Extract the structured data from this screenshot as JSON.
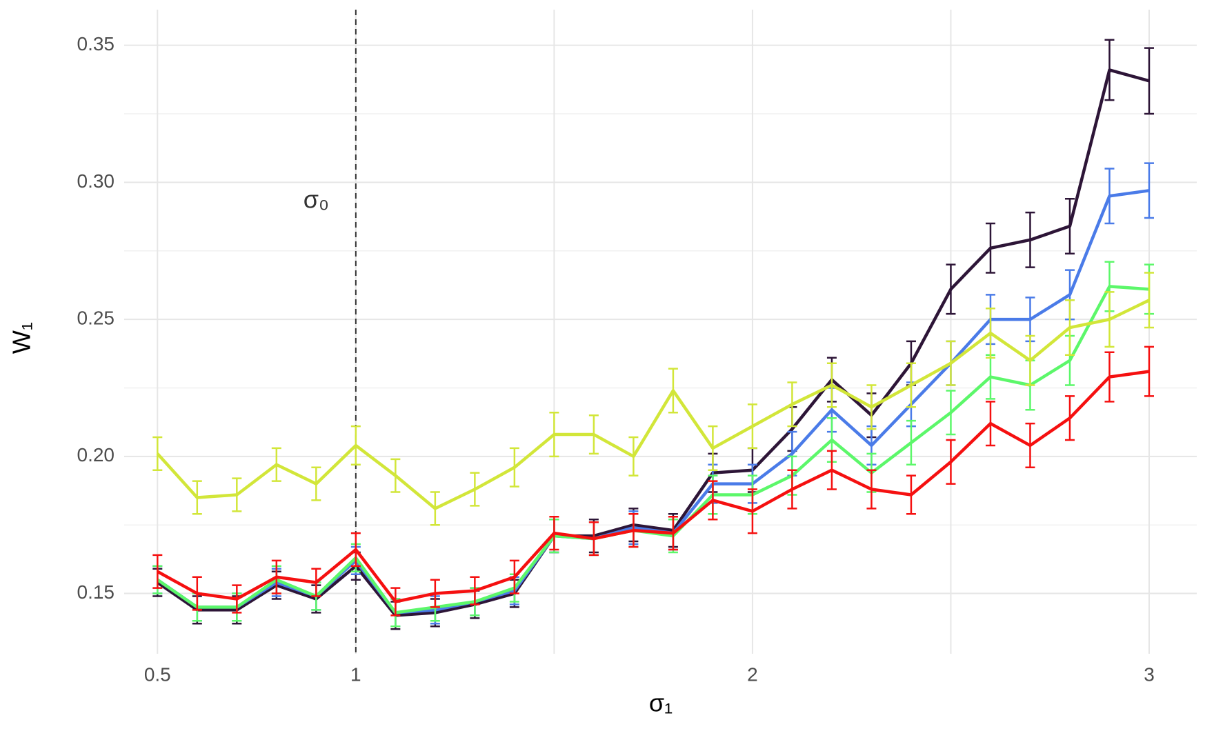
{
  "chart_data": {
    "type": "line",
    "x_label": "σ₁",
    "y_label": "W₁",
    "x": [
      0.5,
      0.6,
      0.7,
      0.8,
      0.9,
      1.0,
      1.1,
      1.2,
      1.3,
      1.4,
      1.5,
      1.6,
      1.7,
      1.8,
      1.9,
      2.0,
      2.1,
      2.2,
      2.3,
      2.4,
      2.5,
      2.6,
      2.7,
      2.8,
      2.9,
      3.0
    ],
    "xlim": [
      0.416,
      3.12
    ],
    "xticks": [
      0.5,
      1,
      2,
      3
    ],
    "xminor": [
      1.5,
      2.5
    ],
    "ylim": [
      0.128,
      0.363
    ],
    "yticks": [
      0.15,
      {
        "value": 0.2,
        "label": "0.20"
      },
      0.25,
      {
        "value": 0.3,
        "label": "0.30"
      },
      0.35
    ],
    "yminor": [
      0.175,
      0.225,
      0.275,
      0.325
    ],
    "grid": true,
    "vline": 1,
    "annotation": {
      "text": "σ₀",
      "x": 0.9,
      "y": 0.293
    },
    "series": [
      {
        "color": "#2d1537",
        "values": [
          0.154,
          0.144,
          0.144,
          0.153,
          0.148,
          0.16,
          0.142,
          0.143,
          0.146,
          0.15,
          0.171,
          0.171,
          0.175,
          0.173,
          0.194,
          0.195,
          0.21,
          0.228,
          0.215,
          0.234,
          0.261,
          0.276,
          0.279,
          0.284,
          0.341,
          0.337
        ],
        "errors": [
          0.005,
          0.005,
          0.005,
          0.005,
          0.005,
          0.005,
          0.005,
          0.005,
          0.005,
          0.005,
          0.006,
          0.006,
          0.006,
          0.006,
          0.007,
          0.008,
          0.008,
          0.008,
          0.008,
          0.008,
          0.009,
          0.009,
          0.01,
          0.01,
          0.011,
          0.012
        ]
      },
      {
        "color": "#4a7be8",
        "values": [
          0.155,
          0.145,
          0.145,
          0.154,
          0.149,
          0.162,
          0.143,
          0.144,
          0.147,
          0.151,
          0.171,
          0.17,
          0.174,
          0.172,
          0.19,
          0.19,
          0.201,
          0.217,
          0.204,
          0.219,
          0.234,
          0.25,
          0.25,
          0.259,
          0.295,
          0.297
        ],
        "errors": [
          0.005,
          0.005,
          0.005,
          0.005,
          0.005,
          0.005,
          0.005,
          0.005,
          0.005,
          0.005,
          0.006,
          0.006,
          0.006,
          0.006,
          0.007,
          0.007,
          0.008,
          0.008,
          0.007,
          0.008,
          0.008,
          0.009,
          0.008,
          0.009,
          0.01,
          0.01
        ]
      },
      {
        "color": "#5cf76a",
        "values": [
          0.155,
          0.145,
          0.145,
          0.155,
          0.149,
          0.163,
          0.143,
          0.145,
          0.147,
          0.152,
          0.171,
          0.17,
          0.173,
          0.171,
          0.186,
          0.186,
          0.193,
          0.206,
          0.194,
          0.205,
          0.216,
          0.229,
          0.226,
          0.235,
          0.262,
          0.261
        ],
        "errors": [
          0.005,
          0.005,
          0.005,
          0.005,
          0.005,
          0.005,
          0.005,
          0.005,
          0.005,
          0.005,
          0.006,
          0.006,
          0.006,
          0.006,
          0.007,
          0.007,
          0.007,
          0.008,
          0.007,
          0.008,
          0.008,
          0.008,
          0.009,
          0.009,
          0.009,
          0.009
        ]
      },
      {
        "color": "#d2e639",
        "values": [
          0.201,
          0.185,
          0.186,
          0.197,
          0.19,
          0.204,
          0.193,
          0.181,
          0.188,
          0.196,
          0.208,
          0.208,
          0.2,
          0.224,
          0.203,
          0.211,
          0.219,
          0.226,
          0.218,
          0.226,
          0.234,
          0.245,
          0.235,
          0.247,
          0.25,
          0.257
        ],
        "errors": [
          0.006,
          0.006,
          0.006,
          0.006,
          0.006,
          0.007,
          0.006,
          0.006,
          0.006,
          0.007,
          0.008,
          0.007,
          0.007,
          0.008,
          0.008,
          0.008,
          0.008,
          0.008,
          0.008,
          0.008,
          0.008,
          0.009,
          0.009,
          0.01,
          0.01,
          0.01
        ]
      },
      {
        "color": "#f51010",
        "values": [
          0.158,
          0.15,
          0.148,
          0.156,
          0.154,
          0.166,
          0.147,
          0.15,
          0.151,
          0.156,
          0.172,
          0.17,
          0.173,
          0.172,
          0.184,
          0.18,
          0.188,
          0.195,
          0.188,
          0.186,
          0.198,
          0.212,
          0.204,
          0.214,
          0.229,
          0.231
        ],
        "errors": [
          0.006,
          0.006,
          0.005,
          0.006,
          0.005,
          0.006,
          0.005,
          0.005,
          0.005,
          0.006,
          0.006,
          0.006,
          0.006,
          0.006,
          0.007,
          0.008,
          0.007,
          0.007,
          0.007,
          0.007,
          0.008,
          0.008,
          0.008,
          0.008,
          0.009,
          0.009
        ]
      }
    ]
  }
}
